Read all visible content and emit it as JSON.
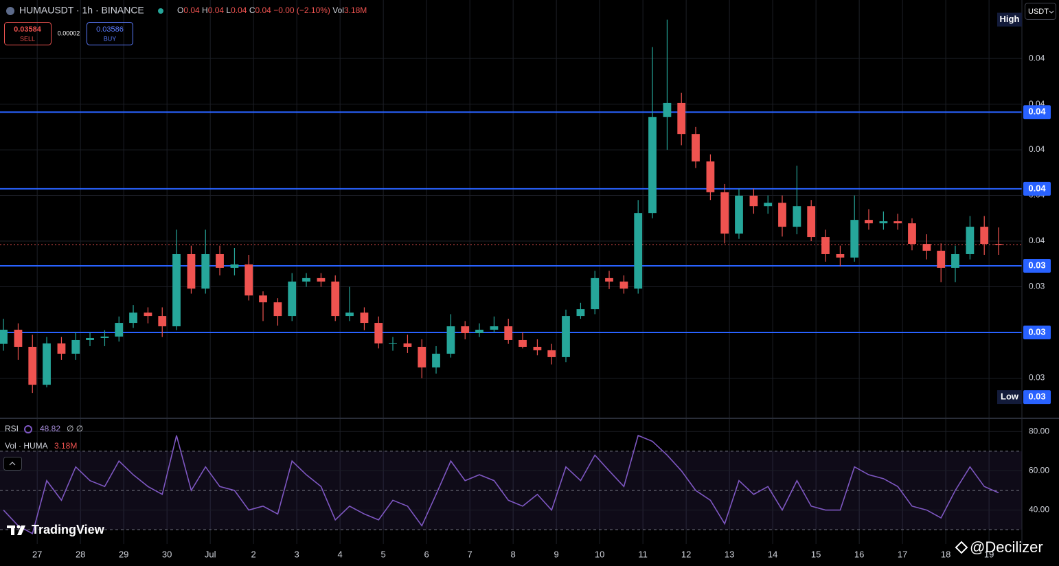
{
  "header": {
    "symbol": "HUMAUSDT · 1h · BINANCE",
    "ohlc": [
      {
        "key": "O",
        "text": "0.04"
      },
      {
        "key": "H",
        "text": "0.04"
      },
      {
        "key": "L",
        "text": "0.04"
      },
      {
        "key": "C",
        "text": "0.04"
      }
    ],
    "change": "−0.00 (−2.10%)",
    "vol_key": "Vol",
    "vol_text": "3.18M"
  },
  "trade": {
    "sell_price": "0.03584",
    "sell_label": "SELL",
    "spread": "0.00002",
    "buy_price": "0.03586",
    "buy_label": "BUY"
  },
  "currency": "USDT",
  "watermark": "TradingView",
  "credit": "@Decilizer",
  "chart_data": [
    {
      "type": "candlestick",
      "x": [
        -0.78,
        -0.44,
        -0.11,
        0.22,
        0.56,
        0.89,
        1.22,
        1.56,
        1.89,
        2.22,
        2.56,
        2.89,
        3.22,
        3.56,
        3.89,
        4.22,
        4.56,
        4.89,
        5.22,
        5.56,
        5.89,
        6.22,
        6.56,
        6.89,
        7.22,
        7.56,
        7.89,
        8.22,
        8.56,
        8.89,
        9.22,
        9.56,
        9.89,
        10.22,
        10.56,
        10.89,
        11.22,
        11.56,
        11.89,
        12.22,
        12.56,
        12.89,
        13.22,
        13.56,
        13.89,
        14.22,
        14.56,
        14.89,
        15.22,
        15.56,
        15.89,
        16.22,
        16.56,
        16.89,
        17.22,
        17.56,
        17.89,
        18.22,
        18.56,
        18.89,
        19.22,
        19.56,
        19.89,
        20.22,
        20.56,
        20.89,
        21.22,
        21.56,
        21.89,
        22.22
      ],
      "open": [
        0.0315,
        0.03212,
        0.03137,
        0.02971,
        0.03152,
        0.03107,
        0.03167,
        0.03176,
        0.03182,
        0.03242,
        0.03287,
        0.03272,
        0.03227,
        0.03543,
        0.03392,
        0.03543,
        0.03483,
        0.03498,
        0.03362,
        0.03332,
        0.03272,
        0.03423,
        0.03438,
        0.03423,
        0.03272,
        0.03287,
        0.03242,
        0.03152,
        0.03152,
        0.03137,
        0.03047,
        0.03107,
        0.03227,
        0.03197,
        0.03212,
        0.03227,
        0.03167,
        0.03137,
        0.03122,
        0.03092,
        0.03272,
        0.03302,
        0.03438,
        0.03423,
        0.03392,
        0.03723,
        0.04144,
        0.04205,
        0.04069,
        0.03949,
        0.03814,
        0.03633,
        0.03799,
        0.03753,
        0.03768,
        0.03663,
        0.03753,
        0.03618,
        0.03543,
        0.03528,
        0.03693,
        0.03678,
        0.03687,
        0.03678,
        0.03588,
        0.03558,
        0.03483,
        0.03543,
        0.03663,
        0.03588
      ],
      "high": [
        0.0326,
        0.0324,
        0.0319,
        0.0318,
        0.0318,
        0.032,
        0.032,
        0.0321,
        0.0327,
        0.0332,
        0.0331,
        0.0331,
        0.0365,
        0.0358,
        0.0365,
        0.0358,
        0.0357,
        0.0354,
        0.0338,
        0.0335,
        0.0346,
        0.0346,
        0.0346,
        0.0345,
        0.034,
        0.0331,
        0.0327,
        0.0318,
        0.0319,
        0.0317,
        0.0314,
        0.0328,
        0.0325,
        0.0324,
        0.0327,
        0.0326,
        0.032,
        0.0317,
        0.0315,
        0.033,
        0.0333,
        0.0347,
        0.0347,
        0.0345,
        0.0378,
        0.0445,
        0.0457,
        0.0425,
        0.041,
        0.0398,
        0.0385,
        0.0383,
        0.0383,
        0.038,
        0.038,
        0.0393,
        0.0378,
        0.0365,
        0.0358,
        0.038,
        0.0374,
        0.0373,
        0.0372,
        0.037,
        0.0363,
        0.0359,
        0.0358,
        0.0371,
        0.0371,
        0.0366
      ],
      "low": [
        0.0312,
        0.0308,
        0.02935,
        0.0296,
        0.0308,
        0.0308,
        0.0314,
        0.0314,
        0.0316,
        0.0322,
        0.0324,
        0.0318,
        0.0321,
        0.0337,
        0.0337,
        0.0345,
        0.0345,
        0.0334,
        0.0325,
        0.0323,
        0.0325,
        0.034,
        0.034,
        0.0325,
        0.0325,
        0.0321,
        0.0313,
        0.0312,
        0.0311,
        0.03,
        0.0302,
        0.0309,
        0.0317,
        0.0318,
        0.032,
        0.0315,
        0.0313,
        0.031,
        0.0306,
        0.0307,
        0.0326,
        0.0328,
        0.0339,
        0.0337,
        0.0337,
        0.037,
        0.04,
        0.0402,
        0.0392,
        0.0378,
        0.0359,
        0.0361,
        0.0372,
        0.0372,
        0.0362,
        0.0363,
        0.036,
        0.0351,
        0.0349,
        0.0351,
        0.0365,
        0.0365,
        0.0365,
        0.0356,
        0.0352,
        0.0342,
        0.0342,
        0.0352,
        0.0354,
        0.0354
      ],
      "close": [
        0.03212,
        0.03137,
        0.02971,
        0.03152,
        0.03107,
        0.03167,
        0.03176,
        0.03182,
        0.03242,
        0.03287,
        0.03272,
        0.03227,
        0.03543,
        0.03392,
        0.03543,
        0.03483,
        0.03498,
        0.03362,
        0.03332,
        0.03272,
        0.03423,
        0.03438,
        0.03423,
        0.03272,
        0.03287,
        0.03242,
        0.03152,
        0.03152,
        0.03137,
        0.03047,
        0.03107,
        0.03227,
        0.03197,
        0.03212,
        0.03227,
        0.03167,
        0.03137,
        0.03122,
        0.03092,
        0.03272,
        0.03302,
        0.03438,
        0.03423,
        0.03392,
        0.03723,
        0.04144,
        0.04205,
        0.04069,
        0.03949,
        0.03814,
        0.03633,
        0.03799,
        0.03753,
        0.03768,
        0.03663,
        0.03753,
        0.03618,
        0.03543,
        0.03528,
        0.03693,
        0.03678,
        0.03687,
        0.03678,
        0.03588,
        0.03558,
        0.03483,
        0.03543,
        0.03663,
        0.03588,
        0.03584
      ],
      "up_color": "#26a69a",
      "down_color": "#ef5350",
      "xlim": [
        -0.86,
        22.76
      ],
      "xticks": [
        {
          "value": 0,
          "label": "27"
        },
        {
          "value": 1,
          "label": "28"
        },
        {
          "value": 2,
          "label": "29"
        },
        {
          "value": 3,
          "label": "30"
        },
        {
          "value": 4,
          "label": "Jul"
        },
        {
          "value": 5,
          "label": "2"
        },
        {
          "value": 6,
          "label": "3"
        },
        {
          "value": 7,
          "label": "4"
        },
        {
          "value": 8,
          "label": "5"
        },
        {
          "value": 9,
          "label": "6"
        },
        {
          "value": 10,
          "label": "7"
        },
        {
          "value": 11,
          "label": "8"
        },
        {
          "value": 12,
          "label": "9"
        },
        {
          "value": 13,
          "label": "10"
        },
        {
          "value": 14,
          "label": "11"
        },
        {
          "value": 15,
          "label": "12"
        },
        {
          "value": 16,
          "label": "13"
        },
        {
          "value": 17,
          "label": "14"
        },
        {
          "value": 18,
          "label": "15"
        },
        {
          "value": 19,
          "label": "16"
        },
        {
          "value": 20,
          "label": "17"
        },
        {
          "value": 21,
          "label": "18"
        },
        {
          "value": 22,
          "label": "19"
        }
      ],
      "ylim": [
        0.02827,
        0.04656
      ],
      "yticks": [
        {
          "value": 0.044,
          "label": "0.04"
        },
        {
          "value": 0.042,
          "label": "0.04"
        },
        {
          "value": 0.04,
          "label": "0.04"
        },
        {
          "value": 0.038,
          "label": "0.04"
        },
        {
          "value": 0.036,
          "label": "0.04"
        },
        {
          "value": 0.034,
          "label": "0.03"
        },
        {
          "value": 0.032,
          "label": "0.03"
        },
        {
          "value": 0.03,
          "label": "0.03"
        }
      ],
      "grid": true,
      "levels": [
        {
          "value": 0.04165,
          "label": "0.04"
        },
        {
          "value": 0.03829,
          "label": "0.04"
        },
        {
          "value": 0.03492,
          "label": "0.03"
        },
        {
          "value": 0.032,
          "label": "0.03"
        }
      ],
      "level_color": "#2962ff",
      "last_price": 0.03584,
      "last_color": "#ef5350",
      "high_marker": {
        "value": 0.0457,
        "name": "High"
      },
      "low_marker": {
        "value": 0.02917,
        "label": "0.03",
        "name": "Low"
      }
    },
    {
      "type": "line",
      "series": [
        {
          "name": "RSI",
          "color": "#7e57c2",
          "values": [
            40,
            32,
            28,
            55,
            45,
            62,
            55,
            52,
            65,
            58,
            52,
            48,
            78,
            50,
            62,
            52,
            50,
            40,
            42,
            38,
            65,
            58,
            52,
            35,
            42,
            38,
            35,
            45,
            42,
            32,
            48,
            65,
            55,
            58,
            55,
            45,
            42,
            48,
            40,
            62,
            55,
            68,
            60,
            52,
            78,
            75,
            68,
            60,
            50,
            45,
            33,
            55,
            48,
            52,
            40,
            55,
            42,
            40,
            40,
            62,
            58,
            56,
            52,
            42,
            40,
            36,
            50,
            62,
            52,
            48.82
          ]
        }
      ],
      "legend_value": "48.82",
      "legend_extra": "∅ ∅",
      "volume_legend": "Vol · HUMA",
      "volume_text": "3.18M",
      "ylim": [
        22.7,
        86.4
      ],
      "yticks": [
        {
          "value": 80,
          "label": "80.00"
        },
        {
          "value": 60,
          "label": "60.00"
        },
        {
          "value": 40,
          "label": "40.00"
        }
      ],
      "bands": [
        70,
        50,
        30
      ]
    }
  ]
}
